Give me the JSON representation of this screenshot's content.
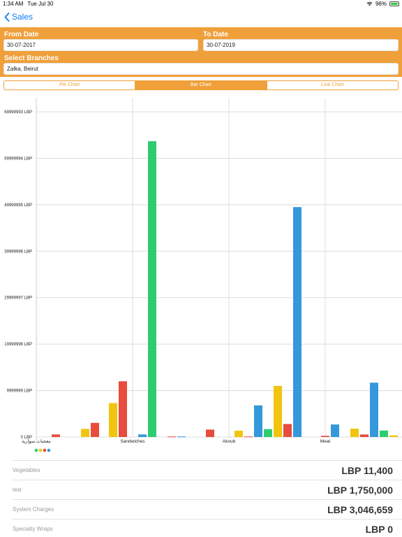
{
  "status_bar": {
    "time": "1:34 AM",
    "date": "Tue Jul 30",
    "battery": "96%",
    "icons": [
      "wifi-icon",
      "battery-icon"
    ]
  },
  "nav": {
    "back_label": "Sales",
    "back_icon": "chevron-left-icon"
  },
  "filters": {
    "from_label": "From Date",
    "from_value": "30-07-2017",
    "to_label": "To Date",
    "to_value": "30-07-2019",
    "branches_label": "Select Branches",
    "branches_value": "Zalka, Beirut"
  },
  "tabs": [
    {
      "label": "Pie Chart",
      "active": false
    },
    {
      "label": "Bar Chart",
      "active": true
    },
    {
      "label": "Line Chart",
      "active": false
    }
  ],
  "colors": {
    "accent": "#f0a03a",
    "link": "#0a7cff",
    "series": [
      "#e74c3c",
      "#f1c40f",
      "#2ecc71",
      "#3498db"
    ]
  },
  "chart_data": {
    "type": "bar",
    "y_ticks": [
      "0 LBP",
      "9999999 LBP",
      "19999998 LBP",
      "29999997 LBP",
      "39999996 LBP",
      "49999995 LBP",
      "59999994 LBP",
      "69999993 LBP"
    ],
    "ylim": [
      0,
      69999993
    ],
    "grid": true,
    "legend_position": "bottom-left",
    "groups": [
      {
        "label": "معجنات سوارية",
        "bars": [
          {
            "color": "#e74c3c",
            "value": 550000
          },
          {
            "color": "#f1c40f",
            "value": 1750000
          },
          {
            "color": "#e74c3c",
            "value": 3046659
          },
          {
            "color": "#2ecc71",
            "value": 1500000
          }
        ]
      },
      {
        "label": "Sandwiches",
        "bars": [
          {
            "color": "#f1c40f",
            "value": 7300000
          },
          {
            "color": "#e74c3c",
            "value": 12000000
          },
          {
            "color": "#3498db",
            "value": 550000
          },
          {
            "color": "#2ecc71",
            "value": 63700000
          },
          {
            "color": "#e74c3c",
            "value": 110000
          },
          {
            "color": "#3498db",
            "value": 110000
          },
          {
            "color": "#e74c3c",
            "value": 1600000
          }
        ]
      },
      {
        "label": "Akoub",
        "bars": [
          {
            "color": "#f1c40f",
            "value": 1350000
          },
          {
            "color": "#e74c3c",
            "value": 110000
          },
          {
            "color": "#3498db",
            "value": 6800000
          },
          {
            "color": "#2ecc71",
            "value": 1700000
          },
          {
            "color": "#f1c40f",
            "value": 11000000
          },
          {
            "color": "#e74c3c",
            "value": 2800000
          },
          {
            "color": "#3498db",
            "value": 49500000
          },
          {
            "color": "#e74c3c",
            "value": 250000
          }
        ]
      },
      {
        "label": "Meat",
        "bars": [
          {
            "color": "#3498db",
            "value": 2700000
          },
          {
            "color": "#f1c40f",
            "value": 1800000
          },
          {
            "color": "#e74c3c",
            "value": 550000
          },
          {
            "color": "#3498db",
            "value": 11700000
          },
          {
            "color": "#2ecc71",
            "value": 1400000
          },
          {
            "color": "#f1c40f",
            "value": 350000
          }
        ]
      }
    ],
    "legend_dots": [
      "#2ecc71",
      "#f1c40f",
      "#e74c3c",
      "#3498db"
    ]
  },
  "list": [
    {
      "label": "Vegetables",
      "value": "LBP 11,400"
    },
    {
      "label": "test",
      "value": "LBP 1,750,000"
    },
    {
      "label": "System Charges",
      "value": "LBP 3,046,659"
    },
    {
      "label": "Specialty Wraps",
      "value": "LBP 0"
    }
  ]
}
